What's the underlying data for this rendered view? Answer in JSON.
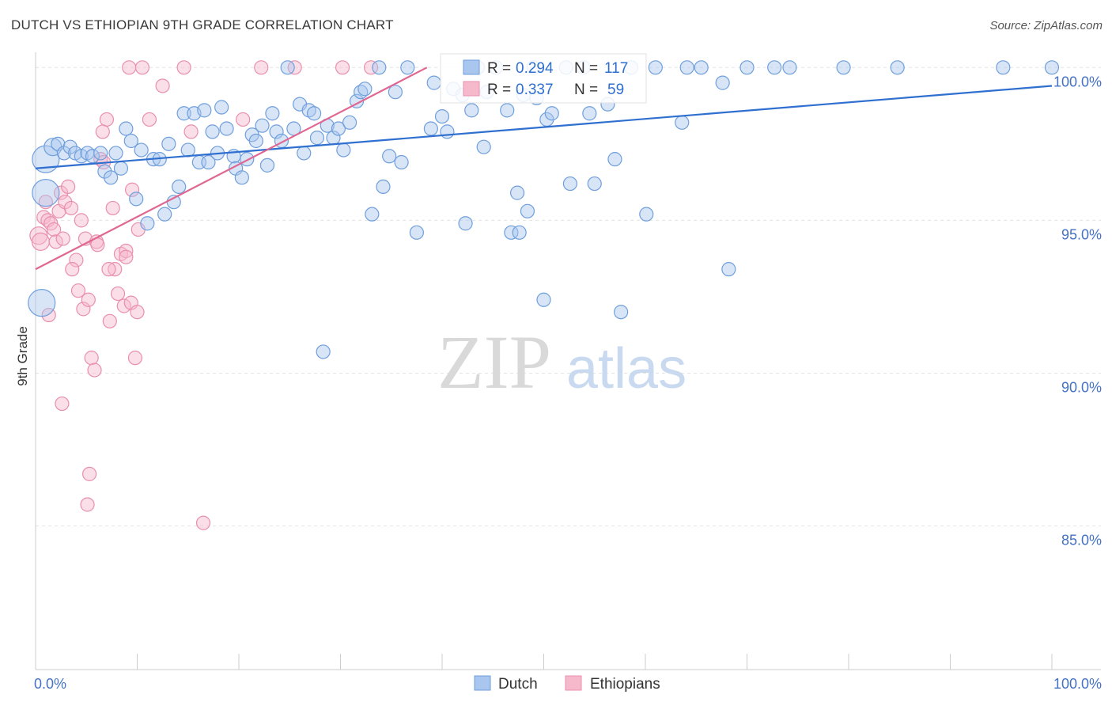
{
  "header": {
    "title": "DUTCH VS ETHIOPIAN 9TH GRADE CORRELATION CHART",
    "source": "Source: ZipAtlas.com"
  },
  "watermark": {
    "zip": "ZIP",
    "atlas": "atlas"
  },
  "colors": {
    "dutch_fill": "#a9c6ee",
    "dutch_stroke": "#6f9fdc",
    "dutch_line": "#2f6fd0",
    "eth_fill": "#f6b9cc",
    "eth_stroke": "#e98fae",
    "eth_line": "#e06792",
    "value_text": "#2f6fd0",
    "label_text": "#333333",
    "grid": "#e3e3e3"
  },
  "legend": {
    "rows": [
      {
        "r_label": "R =",
        "r_value": "0.294",
        "n_label": "N =",
        "n_value": "117"
      },
      {
        "r_label": "R =",
        "r_value": "0.337",
        "n_label": "N =",
        "n_value": "59"
      }
    ]
  },
  "bottom_legend": {
    "dutch": "Dutch",
    "ethiopians": "Ethiopians"
  },
  "chart_data": {
    "type": "scatter",
    "title": "DUTCH VS ETHIOPIAN 9TH GRADE CORRELATION CHART",
    "xlabel": "",
    "ylabel": "9th Grade",
    "xlim": [
      0,
      100
    ],
    "ylim": [
      80.3,
      100.5
    ],
    "x_tick_labels": [
      "0.0%",
      "100.0%"
    ],
    "y_ticks": [
      85,
      90,
      95,
      100
    ],
    "y_tick_labels": [
      "85.0%",
      "90.0%",
      "95.0%",
      "100.0%"
    ],
    "grid": true,
    "legend_position": "top-center",
    "series": [
      {
        "name": "Dutch",
        "r": 0.294,
        "n": 117,
        "trend": {
          "x": [
            0,
            100
          ],
          "y": [
            96.7,
            99.4
          ]
        },
        "points": [
          [
            1,
            97.0,
            3
          ],
          [
            1,
            95.9,
            3
          ],
          [
            0.6,
            92.3,
            3
          ],
          [
            1.7,
            97.4,
            2
          ],
          [
            2.2,
            97.5,
            1
          ],
          [
            2.8,
            97.2,
            1
          ],
          [
            3.4,
            97.4,
            1
          ],
          [
            3.9,
            97.2,
            1
          ],
          [
            4.5,
            97.1,
            1
          ],
          [
            5.1,
            97.2,
            1
          ],
          [
            5.6,
            97.1,
            1
          ],
          [
            6.4,
            97.2,
            1
          ],
          [
            6.8,
            96.6,
            1
          ],
          [
            7.4,
            96.4,
            1
          ],
          [
            7.9,
            97.2,
            1
          ],
          [
            8.4,
            96.7,
            1
          ],
          [
            8.9,
            98.0,
            1
          ],
          [
            9.4,
            97.6,
            1
          ],
          [
            9.9,
            95.7,
            1
          ],
          [
            10.4,
            97.3,
            1
          ],
          [
            11.0,
            94.9,
            1
          ],
          [
            11.6,
            97.0,
            1
          ],
          [
            12.2,
            97.0,
            1
          ],
          [
            12.7,
            95.2,
            1
          ],
          [
            13.1,
            97.5,
            1
          ],
          [
            13.6,
            95.6,
            1
          ],
          [
            14.1,
            96.1,
            1
          ],
          [
            14.6,
            98.5,
            1
          ],
          [
            15.0,
            97.3,
            1
          ],
          [
            15.6,
            98.5,
            1
          ],
          [
            16.1,
            96.9,
            1
          ],
          [
            16.6,
            98.6,
            1
          ],
          [
            17.0,
            96.9,
            1
          ],
          [
            17.4,
            97.9,
            1
          ],
          [
            17.9,
            97.2,
            1
          ],
          [
            18.3,
            98.7,
            1
          ],
          [
            18.8,
            98.0,
            1
          ],
          [
            19.5,
            97.1,
            1
          ],
          [
            19.7,
            96.7,
            1
          ],
          [
            20.3,
            96.4,
            1
          ],
          [
            20.8,
            97.0,
            1
          ],
          [
            21.3,
            97.8,
            1
          ],
          [
            21.7,
            97.6,
            1
          ],
          [
            22.3,
            98.1,
            1
          ],
          [
            22.8,
            96.8,
            1
          ],
          [
            23.3,
            98.5,
            1
          ],
          [
            23.7,
            97.9,
            1
          ],
          [
            24.2,
            97.6,
            1
          ],
          [
            24.8,
            100.0,
            1
          ],
          [
            25.4,
            98.0,
            1
          ],
          [
            26.0,
            98.8,
            1
          ],
          [
            26.4,
            97.2,
            1
          ],
          [
            26.9,
            98.6,
            1
          ],
          [
            27.4,
            98.5,
            1
          ],
          [
            27.7,
            97.7,
            1
          ],
          [
            28.3,
            90.7,
            1
          ],
          [
            28.7,
            98.1,
            1
          ],
          [
            29.3,
            97.7,
            1
          ],
          [
            29.8,
            98.0,
            1
          ],
          [
            30.3,
            97.3,
            1
          ],
          [
            30.9,
            98.2,
            1
          ],
          [
            31.6,
            98.9,
            1
          ],
          [
            32.0,
            99.2,
            1
          ],
          [
            32.4,
            99.3,
            1
          ],
          [
            33.1,
            95.2,
            1
          ],
          [
            33.8,
            100.0,
            1
          ],
          [
            34.2,
            96.1,
            1
          ],
          [
            34.8,
            97.1,
            1
          ],
          [
            35.4,
            99.2,
            1
          ],
          [
            36.0,
            96.9,
            1
          ],
          [
            36.6,
            100.0,
            1
          ],
          [
            37.5,
            94.6,
            1
          ],
          [
            38.9,
            98.0,
            1
          ],
          [
            39.2,
            99.5,
            1
          ],
          [
            40.0,
            98.4,
            1
          ],
          [
            40.5,
            97.9,
            1
          ],
          [
            41.1,
            99.3,
            1
          ],
          [
            42.0,
            99.1,
            1
          ],
          [
            42.3,
            94.9,
            1
          ],
          [
            42.9,
            98.6,
            1
          ],
          [
            43.5,
            100.0,
            1
          ],
          [
            44.1,
            97.4,
            1
          ],
          [
            44.4,
            99.2,
            1
          ],
          [
            45.3,
            100.0,
            1
          ],
          [
            46.4,
            98.6,
            1
          ],
          [
            46.8,
            94.6,
            1
          ],
          [
            47.4,
            95.9,
            1
          ],
          [
            47.6,
            94.6,
            1
          ],
          [
            48.0,
            99.1,
            1
          ],
          [
            48.4,
            95.3,
            1
          ],
          [
            49.0,
            100.0,
            1
          ],
          [
            49.3,
            99.0,
            1
          ],
          [
            50.0,
            92.4,
            1
          ],
          [
            50.3,
            98.3,
            1
          ],
          [
            50.8,
            98.5,
            1
          ],
          [
            52.2,
            100.0,
            1
          ],
          [
            52.6,
            96.2,
            1
          ],
          [
            53.9,
            100.0,
            1
          ],
          [
            54.5,
            98.5,
            1
          ],
          [
            55.0,
            96.2,
            1
          ],
          [
            56.3,
            98.8,
            1
          ],
          [
            57.0,
            97.0,
            1
          ],
          [
            57.6,
            92.0,
            1
          ],
          [
            58.6,
            100.0,
            1
          ],
          [
            60.1,
            95.2,
            1
          ],
          [
            61.0,
            100.0,
            1
          ],
          [
            63.6,
            98.2,
            1
          ],
          [
            64.1,
            100.0,
            1
          ],
          [
            65.5,
            100.0,
            1
          ],
          [
            67.6,
            99.5,
            1
          ],
          [
            68.2,
            93.4,
            1
          ],
          [
            70.0,
            100.0,
            1
          ],
          [
            72.7,
            100.0,
            1
          ],
          [
            74.2,
            100.0,
            1
          ],
          [
            79.5,
            100.0,
            1
          ],
          [
            84.8,
            100.0,
            1
          ],
          [
            95.2,
            100.0,
            1
          ],
          [
            100.0,
            100.0,
            1
          ]
        ]
      },
      {
        "name": "Ethiopians",
        "r": 0.337,
        "n": 59,
        "trend": {
          "x": [
            0,
            38.5
          ],
          "y": [
            93.4,
            100.0
          ]
        },
        "points": [
          [
            0.3,
            94.5,
            2
          ],
          [
            0.5,
            94.3,
            2
          ],
          [
            0.8,
            95.1,
            1
          ],
          [
            1.0,
            95.6,
            1
          ],
          [
            1.2,
            95.0,
            1
          ],
          [
            1.5,
            94.9,
            1
          ],
          [
            1.8,
            94.7,
            1
          ],
          [
            2.0,
            94.3,
            1
          ],
          [
            2.3,
            95.3,
            1
          ],
          [
            2.5,
            95.9,
            1
          ],
          [
            2.7,
            94.4,
            1
          ],
          [
            2.9,
            95.6,
            1
          ],
          [
            3.2,
            96.1,
            1
          ],
          [
            3.5,
            95.4,
            1
          ],
          [
            4.0,
            93.7,
            1
          ],
          [
            4.2,
            92.7,
            1
          ],
          [
            4.5,
            95.0,
            1
          ],
          [
            4.7,
            92.1,
            1
          ],
          [
            4.9,
            94.4,
            1
          ],
          [
            5.2,
            92.4,
            1
          ],
          [
            5.5,
            90.5,
            1
          ],
          [
            5.8,
            90.1,
            1
          ],
          [
            6.0,
            94.3,
            1
          ],
          [
            6.4,
            97.0,
            1
          ],
          [
            6.7,
            96.9,
            1
          ],
          [
            7.0,
            98.3,
            1
          ],
          [
            7.3,
            91.7,
            1
          ],
          [
            7.6,
            95.4,
            1
          ],
          [
            7.8,
            93.4,
            1
          ],
          [
            8.1,
            92.6,
            1
          ],
          [
            8.4,
            93.9,
            1
          ],
          [
            8.7,
            92.2,
            1
          ],
          [
            8.9,
            94.0,
            1
          ],
          [
            9.2,
            100.0,
            1
          ],
          [
            9.5,
            96.0,
            1
          ],
          [
            9.8,
            90.5,
            1
          ],
          [
            10.1,
            94.7,
            1
          ],
          [
            10.5,
            100.0,
            1
          ],
          [
            11.2,
            98.3,
            1
          ],
          [
            12.5,
            99.4,
            1
          ],
          [
            14.6,
            100.0,
            1
          ],
          [
            15.3,
            97.9,
            1
          ],
          [
            16.5,
            85.1,
            1
          ],
          [
            20.4,
            98.3,
            1
          ],
          [
            22.2,
            100.0,
            1
          ],
          [
            25.5,
            100.0,
            1
          ],
          [
            30.2,
            100.0,
            1
          ],
          [
            33.0,
            100.0,
            1
          ],
          [
            1.3,
            91.9,
            1
          ],
          [
            2.6,
            89.0,
            1
          ],
          [
            5.3,
            86.7,
            1
          ],
          [
            5.1,
            85.7,
            1
          ],
          [
            3.6,
            93.4,
            1
          ],
          [
            6.1,
            94.2,
            1
          ],
          [
            6.6,
            97.9,
            1
          ],
          [
            7.2,
            93.4,
            1
          ],
          [
            8.9,
            93.8,
            1
          ],
          [
            9.4,
            92.3,
            1
          ],
          [
            10.0,
            92.0,
            1
          ]
        ]
      }
    ]
  }
}
